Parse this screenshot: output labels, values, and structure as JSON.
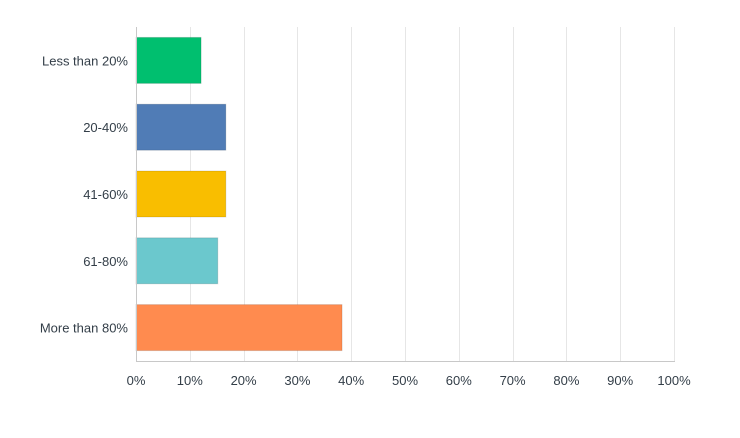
{
  "chart_data": {
    "type": "bar",
    "orientation": "horizontal",
    "categories": [
      "Less than 20%",
      "20-40%",
      "41-60%",
      "61-80%",
      "More than 80%"
    ],
    "values": [
      12.1,
      16.7,
      16.7,
      15.2,
      38.3
    ],
    "colors": [
      "#00bf6f",
      "#507cb6",
      "#f9be00",
      "#6bc8cd",
      "#ff8b4f"
    ],
    "xlim": [
      0,
      100
    ],
    "x_ticks": [
      0,
      10,
      20,
      30,
      40,
      50,
      60,
      70,
      80,
      90,
      100
    ],
    "x_tick_labels": [
      "0%",
      "10%",
      "20%",
      "30%",
      "40%",
      "50%",
      "60%",
      "70%",
      "80%",
      "90%",
      "100%"
    ],
    "grid": true,
    "legend": "none",
    "title": "",
    "xlabel": "",
    "ylabel": ""
  }
}
